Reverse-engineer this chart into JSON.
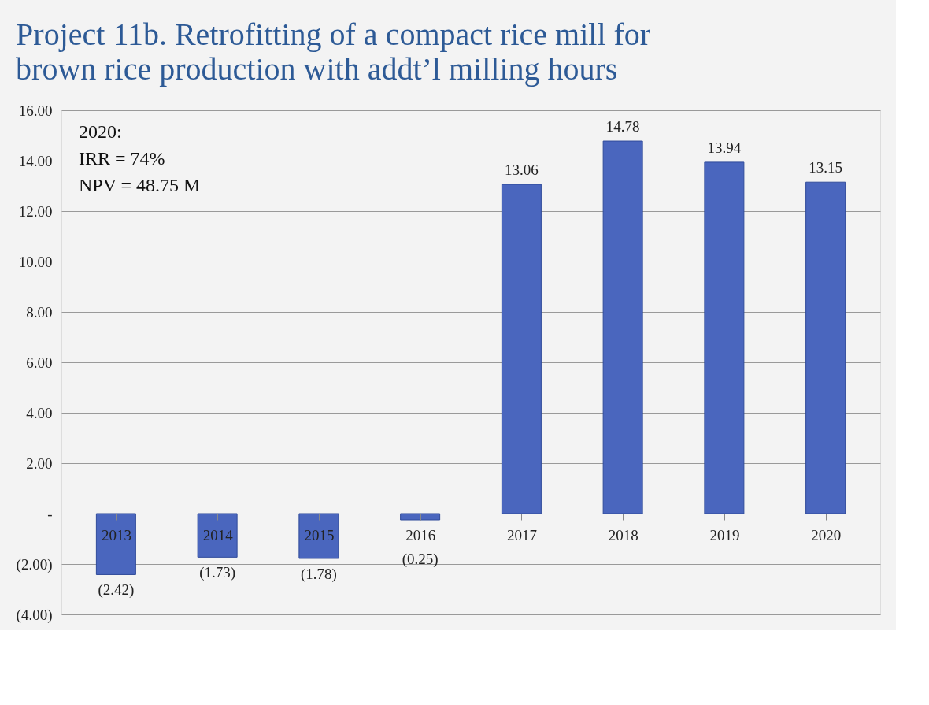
{
  "chart_data": {
    "type": "bar",
    "title": "Project 11b. Retrofitting of a compact rice mill for brown rice production with addt’l milling hours",
    "categories": [
      "2013",
      "2014",
      "2015",
      "2016",
      "2017",
      "2018",
      "2019",
      "2020"
    ],
    "values": [
      -2.42,
      -1.73,
      -1.78,
      -0.25,
      13.06,
      14.78,
      13.94,
      13.15
    ],
    "value_labels": [
      "(2.42)",
      "(1.73)",
      "(1.78)",
      "(0.25)",
      "13.06",
      "14.78",
      "13.94",
      "13.15"
    ],
    "color": "#4a66be",
    "ylim": [
      -4,
      16
    ],
    "yticks": [
      {
        "value": -4,
        "label": "(4.00)"
      },
      {
        "value": -2,
        "label": "(2.00)"
      },
      {
        "value": 0,
        "label": "-"
      },
      {
        "value": 2,
        "label": "2.00"
      },
      {
        "value": 4,
        "label": "4.00"
      },
      {
        "value": 6,
        "label": "6.00"
      },
      {
        "value": 8,
        "label": "8.00"
      },
      {
        "value": 10,
        "label": "10.00"
      },
      {
        "value": 12,
        "label": "12.00"
      },
      {
        "value": 14,
        "label": "14.00"
      },
      {
        "value": 16,
        "label": "16.00"
      }
    ],
    "grid": "y",
    "annotations": [
      "2020:\nIRR = 74%\nNPV = 48.75 M"
    ]
  }
}
